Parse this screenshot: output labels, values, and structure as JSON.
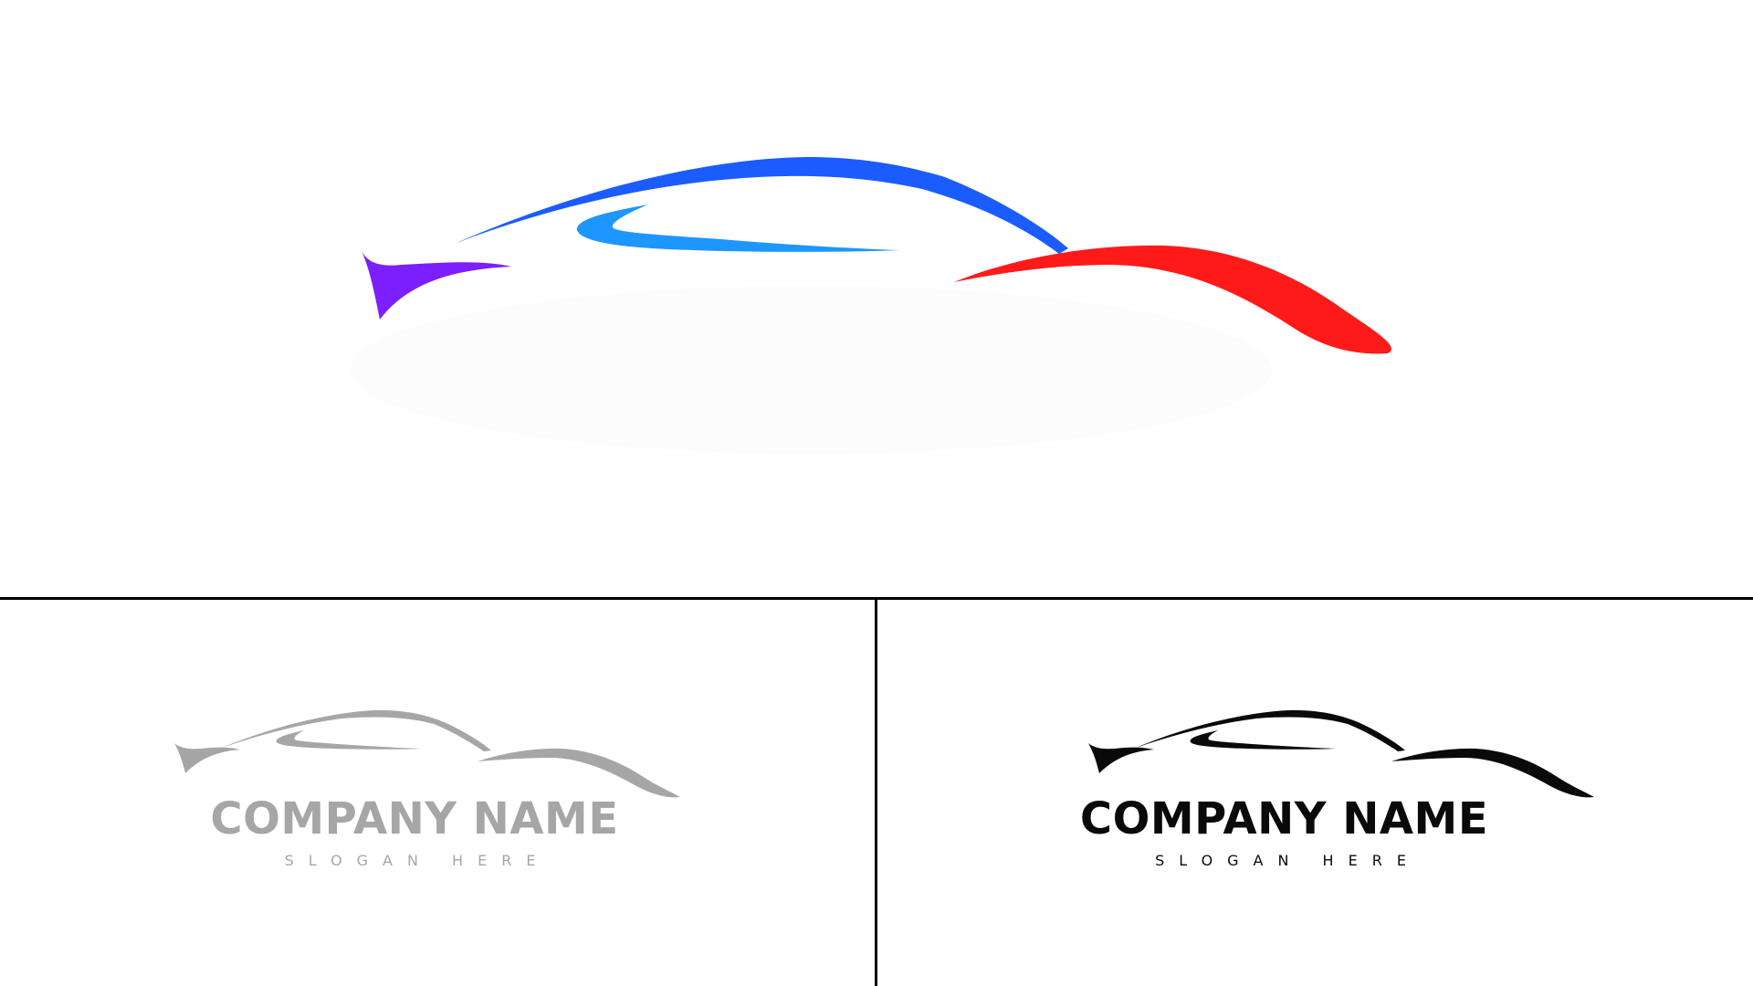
{
  "colors": {
    "background": "#ffffff",
    "divider": "#000000",
    "purple_accent": "#7b1fff",
    "blue_roof": "#1a5cff",
    "light_blue_window": "#1e96ff",
    "red_body": "#ff1a1a",
    "gray_variant": "#a6a6a6",
    "black_variant": "#0a0a0a"
  },
  "hero_logo": {
    "icon": "car-silhouette-icon"
  },
  "variants": [
    {
      "icon": "car-silhouette-icon",
      "company_name": "COMPANY NAME",
      "slogan": "SLOGAN HERE",
      "color": "#a6a6a6"
    },
    {
      "icon": "car-silhouette-icon",
      "company_name": "COMPANY NAME",
      "slogan": "SLOGAN HERE",
      "color": "#0a0a0a"
    }
  ]
}
